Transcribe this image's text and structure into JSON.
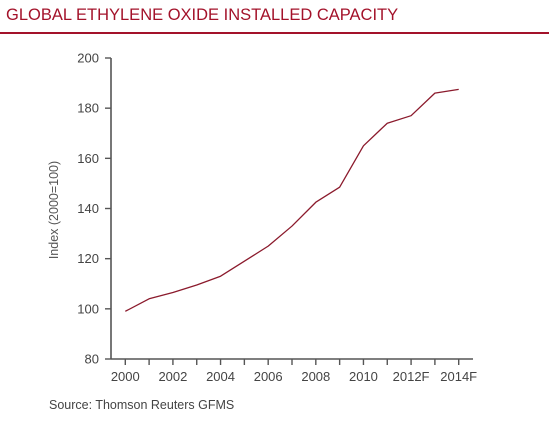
{
  "chart_data": {
    "type": "line",
    "title": "GLOBAL ETHYLENE OXIDE INSTALLED CAPACITY",
    "ylabel": "Index (2000=100)",
    "xlabel": "",
    "ylim": [
      80,
      200
    ],
    "yticks": [
      80,
      100,
      120,
      140,
      160,
      180,
      200
    ],
    "xticks": [
      2000,
      2001,
      2002,
      2003,
      2004,
      2005,
      2006,
      2007,
      2008,
      2009,
      2010,
      2011,
      2012,
      2013,
      2014
    ],
    "xtick_labels": [
      "2000",
      "2002",
      "2004",
      "2006",
      "2008",
      "2010",
      "2012F",
      "2014F"
    ],
    "xtick_label_years": [
      2000,
      2002,
      2004,
      2006,
      2008,
      2010,
      2012,
      2014
    ],
    "xlim": [
      1999.4,
      2014.6
    ],
    "grid": false,
    "series": [
      {
        "color": "#8b1a2c",
        "x": [
          2000,
          2001,
          2002,
          2003,
          2004,
          2005,
          2006,
          2007,
          2008,
          2009,
          2010,
          2011,
          2012,
          2013,
          2014
        ],
        "values": [
          99,
          104,
          106.5,
          109.5,
          113,
          119,
          125,
          133,
          142.5,
          148.5,
          165,
          174,
          177,
          186,
          187.5
        ]
      }
    ],
    "source": "Source: Thomson Reuters GFMS"
  },
  "colors": {
    "accent": "#a3122a",
    "line": "#8b1a2c",
    "axis": "#555555"
  }
}
